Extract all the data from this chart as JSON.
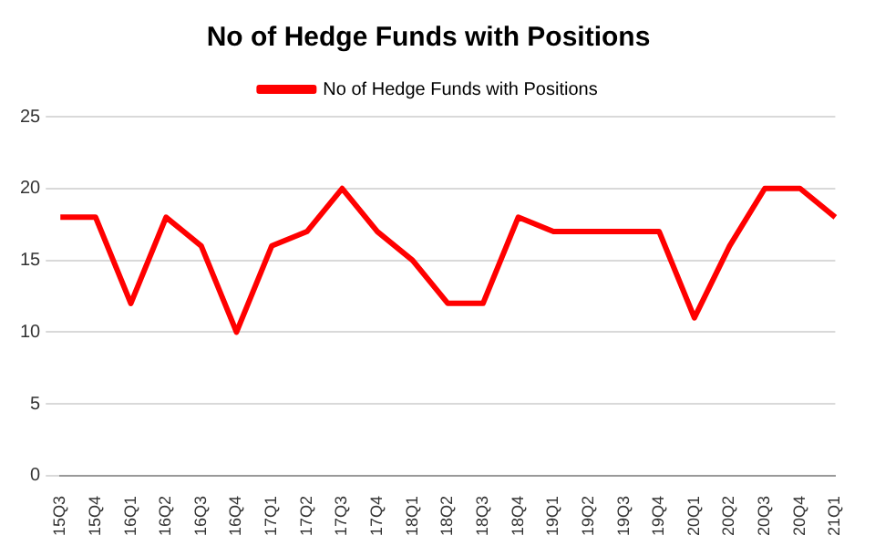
{
  "chart_data": {
    "type": "line",
    "title": "No of Hedge Funds with Positions",
    "categories": [
      "15Q3",
      "15Q4",
      "16Q1",
      "16Q2",
      "16Q3",
      "16Q4",
      "17Q1",
      "17Q2",
      "17Q3",
      "17Q4",
      "18Q1",
      "18Q2",
      "18Q3",
      "18Q4",
      "19Q1",
      "19Q2",
      "19Q3",
      "19Q4",
      "20Q1",
      "20Q2",
      "20Q3",
      "20Q4",
      "21Q1"
    ],
    "series": [
      {
        "name": "No of Hedge Funds with Positions",
        "color": "#ff0000",
        "values": [
          18,
          18,
          12,
          18,
          16,
          10,
          16,
          17,
          20,
          17,
          15,
          12,
          12,
          18,
          17,
          17,
          17,
          17,
          11,
          16,
          20,
          20,
          18
        ]
      }
    ],
    "ylim": [
      0,
      25
    ],
    "yticks": [
      0,
      5,
      10,
      15,
      20,
      25
    ],
    "grid": "y",
    "legend": "top",
    "marker": "none",
    "line_style": "solid"
  }
}
